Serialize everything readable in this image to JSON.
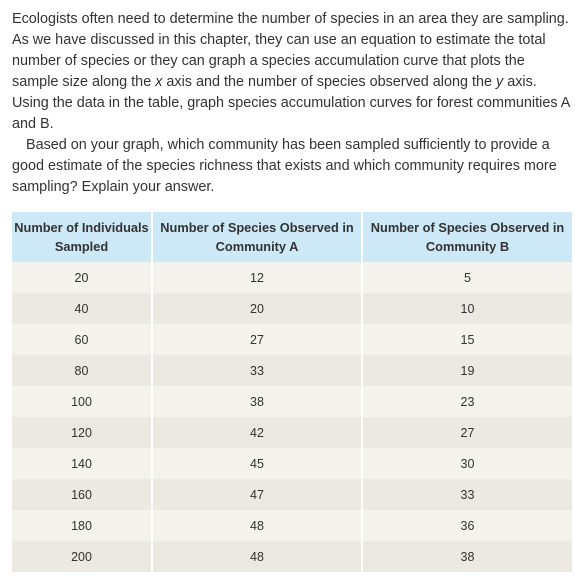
{
  "question": {
    "paragraph1_before_x": "Ecologists often need to determine the number of species in an area they are sampling. As we have discussed in this chapter, they can use an equation to estimate the total number of species or they can graph a species accumulation curve that plots the sample size along the ",
    "x_var": "x",
    "paragraph1_middle": " axis and the number of species observed along the ",
    "y_var": "y",
    "paragraph1_after_y": " axis. Using the data in the table, graph species accumulation curves for forest communities A and B.",
    "paragraph2": "Based on your graph, which community has been sampled sufficiently to provide a good estimate of the species richness that exists and which community requires more sampling? Explain your answer."
  },
  "table": {
    "headers": [
      "Number of Individuals Sampled",
      "Number of Species Observed in Community A",
      "Number of Species Observed in Community B"
    ],
    "rows": [
      [
        "20",
        "12",
        "5"
      ],
      [
        "40",
        "20",
        "10"
      ],
      [
        "60",
        "27",
        "15"
      ],
      [
        "80",
        "33",
        "19"
      ],
      [
        "100",
        "38",
        "23"
      ],
      [
        "120",
        "42",
        "27"
      ],
      [
        "140",
        "45",
        "30"
      ],
      [
        "160",
        "47",
        "33"
      ],
      [
        "180",
        "48",
        "36"
      ],
      [
        "200",
        "48",
        "38"
      ]
    ]
  }
}
